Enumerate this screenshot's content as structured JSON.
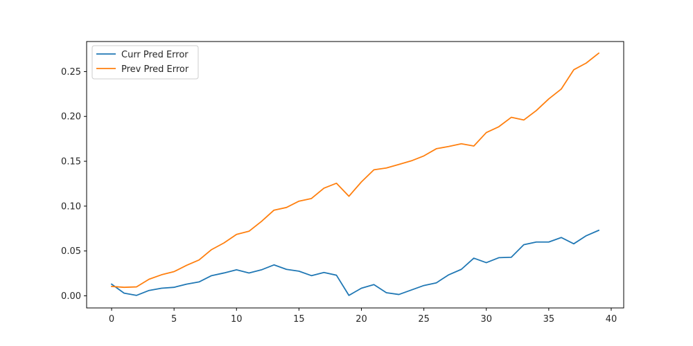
{
  "chart_data": {
    "type": "line",
    "title": "",
    "xlabel": "",
    "ylabel": "",
    "x": [
      0,
      1,
      2,
      3,
      4,
      5,
      6,
      7,
      8,
      9,
      10,
      11,
      12,
      13,
      14,
      15,
      16,
      17,
      18,
      19,
      20,
      21,
      22,
      23,
      24,
      25,
      26,
      27,
      28,
      29,
      30,
      31,
      32,
      33,
      34,
      35,
      36,
      37,
      38,
      39
    ],
    "xlim": [
      -2,
      41
    ],
    "ylim": [
      -0.0135,
      0.2835
    ],
    "xticks": [
      0,
      5,
      10,
      15,
      20,
      25,
      30,
      35,
      40
    ],
    "xtick_labels": [
      "0",
      "5",
      "10",
      "15",
      "20",
      "25",
      "30",
      "35",
      "40"
    ],
    "yticks": [
      0.0,
      0.05,
      0.1,
      0.15,
      0.2,
      0.25
    ],
    "ytick_labels": [
      "0.00",
      "0.05",
      "0.10",
      "0.15",
      "0.20",
      "0.25"
    ],
    "grid": false,
    "legend_position": "top-left",
    "series": [
      {
        "name": "Curr Pred Error",
        "color": "#1f77b4",
        "values": [
          0.013,
          0.003,
          0.0005,
          0.006,
          0.0085,
          0.0095,
          0.013,
          0.0155,
          0.0225,
          0.0255,
          0.029,
          0.0255,
          0.029,
          0.0345,
          0.0295,
          0.0275,
          0.0225,
          0.026,
          0.023,
          0.0005,
          0.0085,
          0.0125,
          0.0035,
          0.0015,
          0.0065,
          0.0115,
          0.0145,
          0.0235,
          0.0295,
          0.042,
          0.037,
          0.0425,
          0.043,
          0.057,
          0.06,
          0.06,
          0.065,
          0.058,
          0.067,
          0.073
        ]
      },
      {
        "name": "Prev Pred Error",
        "color": "#ff7f0e",
        "values": [
          0.0105,
          0.0095,
          0.01,
          0.0185,
          0.0235,
          0.027,
          0.034,
          0.04,
          0.0515,
          0.059,
          0.0685,
          0.072,
          0.083,
          0.0955,
          0.0985,
          0.1055,
          0.1085,
          0.12,
          0.1255,
          0.111,
          0.127,
          0.1405,
          0.1425,
          0.1465,
          0.1505,
          0.156,
          0.164,
          0.1665,
          0.1695,
          0.167,
          0.182,
          0.1885,
          0.199,
          0.196,
          0.2065,
          0.2195,
          0.2305,
          0.252,
          0.2595,
          0.2705
        ]
      }
    ]
  }
}
